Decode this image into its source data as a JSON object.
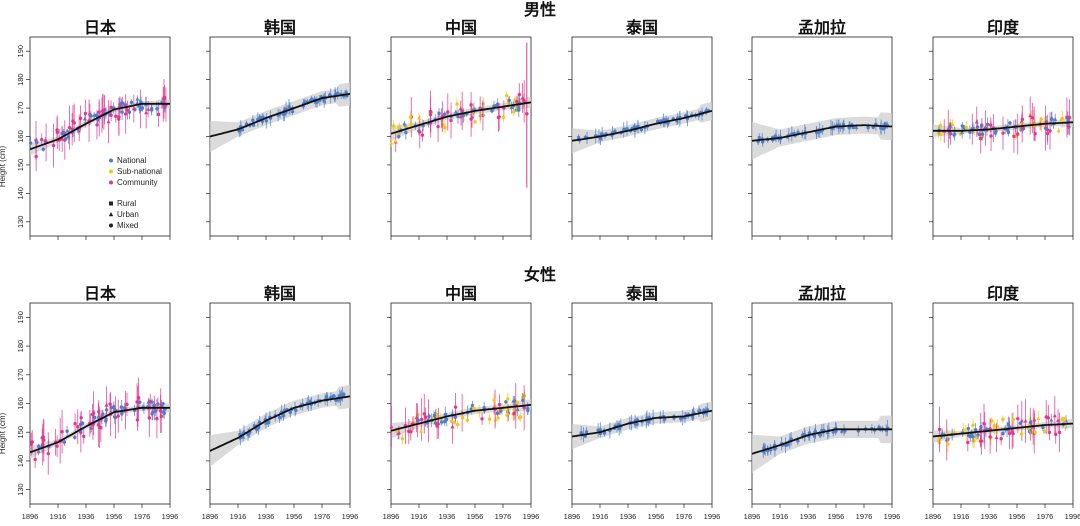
{
  "figure": {
    "sections": [
      {
        "title": "男性",
        "ylabel": "Height (cm)",
        "series_key": "male"
      },
      {
        "title": "女性",
        "ylabel": "Height (cm)",
        "series_key": "female"
      }
    ],
    "legend": {
      "sources": [
        {
          "label": "National",
          "color": "#4f7ec9"
        },
        {
          "label": "Sub-national",
          "color": "#f5c518"
        },
        {
          "label": "Community",
          "color": "#e3378f"
        }
      ],
      "settings": [
        {
          "label": "Rural",
          "marker": "square"
        },
        {
          "label": "Urban",
          "marker": "triangle"
        },
        {
          "label": "Mixed",
          "marker": "circle"
        }
      ]
    },
    "colors": {
      "national": "#4f7ec9",
      "subnational": "#f5c518",
      "community": "#e3378f",
      "trend": "#111111",
      "band": "#cfcfcf"
    }
  },
  "chart_data": [
    {
      "type": "scatter",
      "section": "男性",
      "title": "日本",
      "ylim": [
        125,
        195
      ],
      "yticks": [
        130,
        140,
        150,
        160,
        170,
        180,
        190
      ],
      "xlim": [
        1896,
        1996
      ],
      "xticks": [
        1896,
        1916,
        1936,
        1956,
        1976,
        1996
      ],
      "trend": {
        "x": [
          1896,
          1916,
          1936,
          1956,
          1976,
          1996
        ],
        "y": [
          155.5,
          159,
          164.5,
          169.5,
          171.5,
          171.5
        ]
      },
      "sources": [
        "national",
        "community"
      ],
      "spread": 4,
      "ci": 1
    },
    {
      "type": "scatter",
      "section": "男性",
      "title": "韩国",
      "ylim": [
        125,
        195
      ],
      "yticks": [
        130,
        140,
        150,
        160,
        170,
        180,
        190
      ],
      "xlim": [
        1896,
        1996
      ],
      "xticks": [
        1896,
        1916,
        1936,
        1956,
        1976,
        1996
      ],
      "trend": {
        "x": [
          1896,
          1916,
          1936,
          1956,
          1976,
          1996
        ],
        "y": [
          160,
          162.5,
          166.5,
          170,
          173.5,
          175
        ]
      },
      "sources": [
        "national"
      ],
      "spread": 2,
      "ci": 2.5
    },
    {
      "type": "scatter",
      "section": "男性",
      "title": "中国",
      "ylim": [
        125,
        195
      ],
      "yticks": [
        130,
        140,
        150,
        160,
        170,
        180,
        190
      ],
      "xlim": [
        1896,
        1996
      ],
      "xticks": [
        1896,
        1916,
        1936,
        1956,
        1976,
        1996
      ],
      "trend": {
        "x": [
          1896,
          1916,
          1936,
          1956,
          1976,
          1996
        ],
        "y": [
          161,
          164,
          167,
          169,
          170.5,
          172
        ]
      },
      "sources": [
        "national",
        "subnational",
        "community"
      ],
      "spread": 4,
      "ci": 1.2
    },
    {
      "type": "scatter",
      "section": "男性",
      "title": "泰国",
      "ylim": [
        125,
        195
      ],
      "yticks": [
        130,
        140,
        150,
        160,
        170,
        180,
        190
      ],
      "xlim": [
        1896,
        1996
      ],
      "xticks": [
        1896,
        1916,
        1936,
        1956,
        1976,
        1996
      ],
      "trend": {
        "x": [
          1896,
          1916,
          1936,
          1956,
          1976,
          1996
        ],
        "y": [
          158.5,
          160,
          162,
          164.5,
          166.5,
          169
        ]
      },
      "sources": [
        "national"
      ],
      "spread": 1.5,
      "ci": 2
    },
    {
      "type": "scatter",
      "section": "男性",
      "title": "孟加拉",
      "ylim": [
        125,
        195
      ],
      "yticks": [
        130,
        140,
        150,
        160,
        170,
        180,
        190
      ],
      "xlim": [
        1896,
        1996
      ],
      "xticks": [
        1896,
        1916,
        1936,
        1956,
        1976,
        1996
      ],
      "trend": {
        "x": [
          1896,
          1916,
          1936,
          1956,
          1976,
          1996
        ],
        "y": [
          158.5,
          159.5,
          161.5,
          163.5,
          164,
          163.5
        ]
      },
      "sources": [
        "national"
      ],
      "spread": 1.5,
      "ci": 3
    },
    {
      "type": "scatter",
      "section": "男性",
      "title": "印度",
      "ylim": [
        125,
        195
      ],
      "yticks": [
        130,
        140,
        150,
        160,
        170,
        180,
        190
      ],
      "xlim": [
        1896,
        1996
      ],
      "xticks": [
        1896,
        1916,
        1936,
        1956,
        1976,
        1996
      ],
      "trend": {
        "x": [
          1896,
          1916,
          1936,
          1956,
          1976,
          1996
        ],
        "y": [
          162,
          162,
          162.5,
          163.5,
          164.5,
          165
        ]
      },
      "sources": [
        "national",
        "subnational",
        "community"
      ],
      "spread": 3.5,
      "ci": 1
    },
    {
      "type": "scatter",
      "section": "女性",
      "title": "日本",
      "ylim": [
        125,
        195
      ],
      "yticks": [
        130,
        140,
        150,
        160,
        170,
        180,
        190
      ],
      "xlim": [
        1896,
        1996
      ],
      "xticks": [
        1896,
        1916,
        1936,
        1956,
        1976,
        1996
      ],
      "trend": {
        "x": [
          1896,
          1916,
          1936,
          1956,
          1976,
          1996
        ],
        "y": [
          143,
          146.5,
          152,
          157,
          158.5,
          158.5
        ]
      },
      "sources": [
        "national",
        "community"
      ],
      "spread": 4,
      "ci": 1
    },
    {
      "type": "scatter",
      "section": "女性",
      "title": "韩国",
      "ylim": [
        125,
        195
      ],
      "yticks": [
        130,
        140,
        150,
        160,
        170,
        180,
        190
      ],
      "xlim": [
        1896,
        1996
      ],
      "xticks": [
        1896,
        1916,
        1936,
        1956,
        1976,
        1996
      ],
      "trend": {
        "x": [
          1896,
          1916,
          1936,
          1956,
          1976,
          1996
        ],
        "y": [
          143.5,
          148,
          154,
          158.5,
          161,
          162.5
        ]
      },
      "sources": [
        "national"
      ],
      "spread": 2,
      "ci": 2.5
    },
    {
      "type": "scatter",
      "section": "女性",
      "title": "中国",
      "ylim": [
        125,
        195
      ],
      "yticks": [
        130,
        140,
        150,
        160,
        170,
        180,
        190
      ],
      "xlim": [
        1896,
        1996
      ],
      "xticks": [
        1896,
        1916,
        1936,
        1956,
        1976,
        1996
      ],
      "trend": {
        "x": [
          1896,
          1916,
          1936,
          1956,
          1976,
          1996
        ],
        "y": [
          150.5,
          153,
          155.5,
          157.5,
          158.5,
          159.5
        ]
      },
      "sources": [
        "national",
        "subnational",
        "community"
      ],
      "spread": 4,
      "ci": 1.2
    },
    {
      "type": "scatter",
      "section": "女性",
      "title": "泰国",
      "ylim": [
        125,
        195
      ],
      "yticks": [
        130,
        140,
        150,
        160,
        170,
        180,
        190
      ],
      "xlim": [
        1896,
        1996
      ],
      "xticks": [
        1896,
        1916,
        1936,
        1956,
        1976,
        1996
      ],
      "trend": {
        "x": [
          1896,
          1916,
          1936,
          1956,
          1976,
          1996
        ],
        "y": [
          148.5,
          150,
          153,
          155,
          155.5,
          157.5
        ]
      },
      "sources": [
        "national"
      ],
      "spread": 1.5,
      "ci": 2
    },
    {
      "type": "scatter",
      "section": "女性",
      "title": "孟加拉",
      "ylim": [
        125,
        195
      ],
      "yticks": [
        130,
        140,
        150,
        160,
        170,
        180,
        190
      ],
      "xlim": [
        1896,
        1996
      ],
      "xticks": [
        1896,
        1916,
        1936,
        1956,
        1976,
        1996
      ],
      "trend": {
        "x": [
          1896,
          1916,
          1936,
          1956,
          1976,
          1996
        ],
        "y": [
          142.5,
          145.5,
          149,
          151,
          151,
          151
        ]
      },
      "sources": [
        "national"
      ],
      "spread": 1.5,
      "ci": 3
    },
    {
      "type": "scatter",
      "section": "女性",
      "title": "印度",
      "ylim": [
        125,
        195
      ],
      "yticks": [
        130,
        140,
        150,
        160,
        170,
        180,
        190
      ],
      "xlim": [
        1896,
        1996
      ],
      "xticks": [
        1896,
        1916,
        1936,
        1956,
        1976,
        1996
      ],
      "trend": {
        "x": [
          1896,
          1916,
          1936,
          1956,
          1976,
          1996
        ],
        "y": [
          148.5,
          149.5,
          150.5,
          151.5,
          152.5,
          153
        ]
      },
      "sources": [
        "national",
        "subnational",
        "community"
      ],
      "spread": 3.5,
      "ci": 1
    }
  ]
}
